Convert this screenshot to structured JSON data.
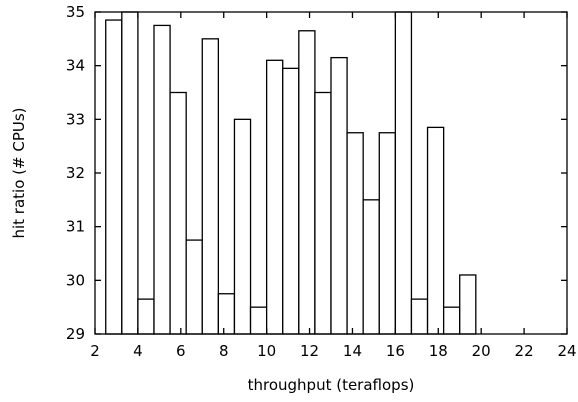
{
  "chart_data": {
    "type": "bar",
    "title": "",
    "xlabel": "throughput (teraflops)",
    "ylabel": "hit ratio (# CPUs)",
    "xlim": [
      2,
      24
    ],
    "ylim": [
      29,
      35
    ],
    "xticks": [
      2,
      4,
      6,
      8,
      10,
      12,
      14,
      16,
      18,
      20,
      22,
      24
    ],
    "yticks": [
      29,
      30,
      31,
      32,
      33,
      34,
      35
    ],
    "grid": false,
    "legend": "none",
    "bar_color": "#ffffff",
    "edge_color": "#000000",
    "bar_width": 0.75,
    "x": [
      2.875,
      3.625,
      4.375,
      5.125,
      5.875,
      6.625,
      7.375,
      8.125,
      8.875,
      9.625,
      10.375,
      11.125,
      11.875,
      12.625,
      13.375,
      14.125,
      14.875,
      15.625,
      16.375,
      17.125,
      17.875,
      18.625,
      19.375,
      20.125,
      20.875,
      21.625
    ],
    "values": [
      34.85,
      35.0,
      29.65,
      34.75,
      33.5,
      30.75,
      34.5,
      29.75,
      33.0,
      29.5,
      34.1,
      33.95,
      34.65,
      33.5,
      34.15,
      32.75,
      31.5,
      32.75,
      35.0,
      29.65,
      32.85,
      29.5,
      30.1,
      29.0,
      29.0,
      29.0
    ]
  }
}
